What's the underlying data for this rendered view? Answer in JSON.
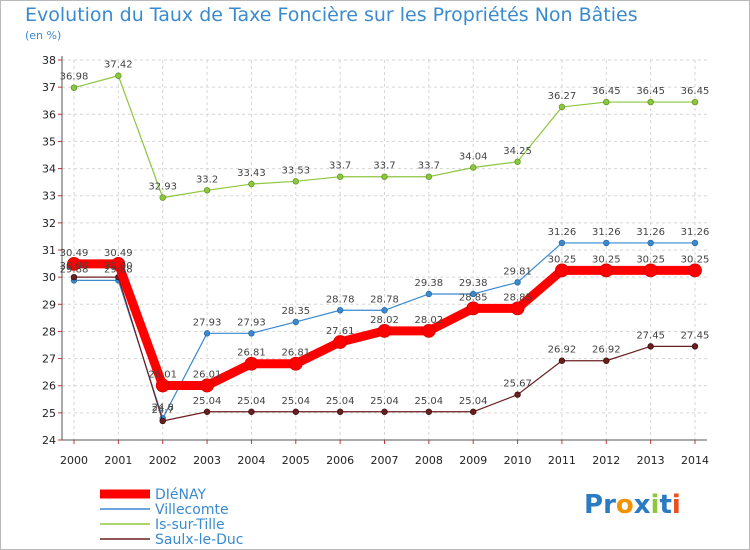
{
  "title": "Evolution du Taux de Taxe Foncière sur les Propriétés Non Bâties",
  "unit_label": "(en %)",
  "logo": {
    "letters": [
      "P",
      "r",
      "o",
      "x",
      "i",
      "t",
      "i"
    ],
    "colors": [
      "#2a7bc1",
      "#2a7bc1",
      "#f39200",
      "#2a7bc1",
      "#8dc63f",
      "#2a7bc1",
      "#e94e1b"
    ]
  },
  "chart_data": {
    "type": "line",
    "title": "Evolution du Taux de Taxe Foncière sur les Propriétés Non Bâties",
    "ylabel": "(en %)",
    "xlabel": "",
    "ylim": [
      24,
      38
    ],
    "yticks": [
      "24",
      "25",
      "26",
      "27",
      "28",
      "29",
      "30",
      "31",
      "32",
      "33",
      "34",
      "35",
      "36",
      "37",
      "38"
    ],
    "categories": [
      "2000",
      "2001",
      "2002",
      "2003",
      "2004",
      "2005",
      "2006",
      "2007",
      "2008",
      "2009",
      "2010",
      "2011",
      "2012",
      "2013",
      "2014"
    ],
    "legend_position": "bottom-left",
    "series": [
      {
        "name": "DIéNAY",
        "color": "#ff0000",
        "values": [
          30.49,
          30.49,
          26.01,
          26.01,
          26.81,
          26.81,
          27.61,
          28.02,
          28.02,
          28.85,
          28.85,
          30.25,
          30.25,
          30.25,
          30.25
        ],
        "labels": [
          "30.49",
          "30.49",
          "26.01",
          "26.01",
          "26.81",
          "26.81",
          "27.61",
          "28.02",
          "28.02",
          "28.85",
          "28.85",
          "30.25",
          "30.25",
          "30.25",
          "30.25"
        ]
      },
      {
        "name": "Villecomte",
        "color": "#3a8ad0",
        "values": [
          29.88,
          29.88,
          24.8,
          27.93,
          27.93,
          28.35,
          28.78,
          28.78,
          29.38,
          29.38,
          29.81,
          31.26,
          31.26,
          31.26,
          31.26
        ],
        "labels": [
          "29.88",
          "29.88",
          "24.8",
          "27.93",
          "27.93",
          "28.35",
          "28.78",
          "28.78",
          "29.38",
          "29.38",
          "29.81",
          "31.26",
          "31.26",
          "31.26",
          "31.26"
        ]
      },
      {
        "name": "Is-sur-Tille",
        "color": "#8dc63f",
        "values": [
          36.98,
          37.42,
          32.93,
          33.2,
          33.43,
          33.53,
          33.7,
          33.7,
          33.7,
          34.04,
          34.25,
          36.27,
          36.45,
          36.45,
          36.45
        ],
        "labels": [
          "36.98",
          "37.42",
          "32.93",
          "33.2",
          "33.43",
          "33.53",
          "33.7",
          "33.7",
          "33.7",
          "34.04",
          "34.25",
          "36.27",
          "36.45",
          "36.45",
          "36.45"
        ]
      },
      {
        "name": "Saulx-le-Duc",
        "color": "#6b1f1f",
        "values": [
          30.0,
          30.0,
          24.7,
          25.04,
          25.04,
          25.04,
          25.04,
          25.04,
          25.04,
          25.04,
          25.67,
          26.92,
          26.92,
          27.45,
          27.45
        ],
        "labels": [
          "30.00",
          "30.00",
          "24.7",
          "25.04",
          "25.04",
          "25.04",
          "25.04",
          "25.04",
          "25.04",
          "25.04",
          "25.67",
          "26.92",
          "26.92",
          "27.45",
          "27.45"
        ]
      }
    ]
  }
}
